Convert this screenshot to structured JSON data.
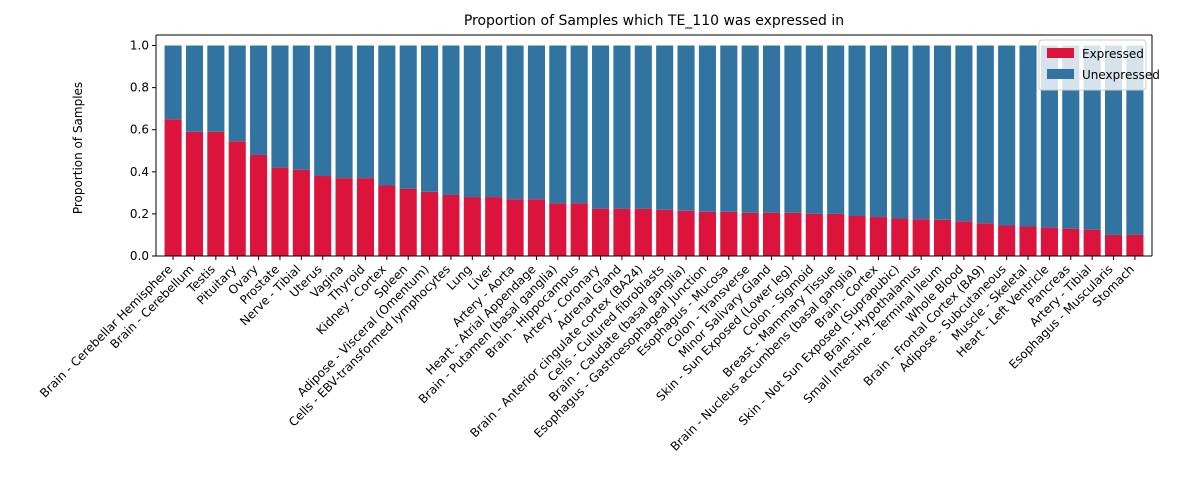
{
  "chart_data": {
    "type": "bar",
    "stacked": true,
    "title": "Proportion of Samples which TE_110 was expressed in",
    "xlabel": "",
    "ylabel": "Proportion of Samples",
    "ylim": [
      0,
      1.05
    ],
    "yticks": [
      "0.0",
      "0.2",
      "0.4",
      "0.6",
      "0.8",
      "1.0"
    ],
    "legend": {
      "placement": "top-right"
    },
    "categories": [
      "Brain - Cerebellar Hemisphere",
      "Brain - Cerebellum",
      "Testis",
      "Pituitary",
      "Ovary",
      "Prostate",
      "Nerve - Tibial",
      "Uterus",
      "Vagina",
      "Thyroid",
      "Kidney - Cortex",
      "Spleen",
      "Adipose - Visceral (Omentum)",
      "Cells - EBV-transformed lymphocytes",
      "Lung",
      "Liver",
      "Artery - Aorta",
      "Heart - Atrial Appendage",
      "Brain - Putamen (basal ganglia)",
      "Brain - Hippocampus",
      "Artery - Coronary",
      "Adrenal Gland",
      "Brain - Anterior cingulate cortex (BA24)",
      "Cells - Cultured fibroblasts",
      "Brain - Caudate (basal ganglia)",
      "Esophagus - Gastroesophageal Junction",
      "Esophagus - Mucosa",
      "Colon - Transverse",
      "Minor Salivary Gland",
      "Skin - Sun Exposed (Lower leg)",
      "Colon - Sigmoid",
      "Breast - Mammary Tissue",
      "Brain - Nucleus accumbens (basal ganglia)",
      "Brain - Cortex",
      "Skin - Not Sun Exposed (Suprapubic)",
      "Brain - Hypothalamus",
      "Small Intestine - Terminal Ileum",
      "Whole Blood",
      "Brain - Frontal Cortex (BA9)",
      "Adipose - Subcutaneous",
      "Muscle - Skeletal",
      "Heart - Left Ventricle",
      "Pancreas",
      "Artery - Tibial",
      "Esophagus - Muscularis",
      "Stomach"
    ],
    "series": [
      {
        "name": "Expressed",
        "color": "#dc143c",
        "values": [
          0.65,
          0.59,
          0.59,
          0.545,
          0.48,
          0.42,
          0.41,
          0.38,
          0.37,
          0.37,
          0.335,
          0.32,
          0.305,
          0.29,
          0.28,
          0.28,
          0.27,
          0.27,
          0.25,
          0.25,
          0.225,
          0.225,
          0.225,
          0.22,
          0.215,
          0.21,
          0.21,
          0.205,
          0.205,
          0.205,
          0.2,
          0.2,
          0.19,
          0.185,
          0.178,
          0.175,
          0.172,
          0.165,
          0.155,
          0.145,
          0.14,
          0.135,
          0.13,
          0.125,
          0.1,
          0.1
        ]
      },
      {
        "name": "Unexpressed",
        "color": "#3274a1",
        "values": [
          0.35,
          0.41,
          0.41,
          0.455,
          0.52,
          0.58,
          0.59,
          0.62,
          0.63,
          0.63,
          0.665,
          0.68,
          0.695,
          0.71,
          0.72,
          0.72,
          0.73,
          0.73,
          0.75,
          0.75,
          0.775,
          0.775,
          0.775,
          0.78,
          0.785,
          0.79,
          0.79,
          0.795,
          0.795,
          0.795,
          0.8,
          0.8,
          0.81,
          0.815,
          0.822,
          0.825,
          0.828,
          0.835,
          0.845,
          0.855,
          0.86,
          0.865,
          0.87,
          0.875,
          0.9,
          0.9
        ]
      }
    ]
  }
}
